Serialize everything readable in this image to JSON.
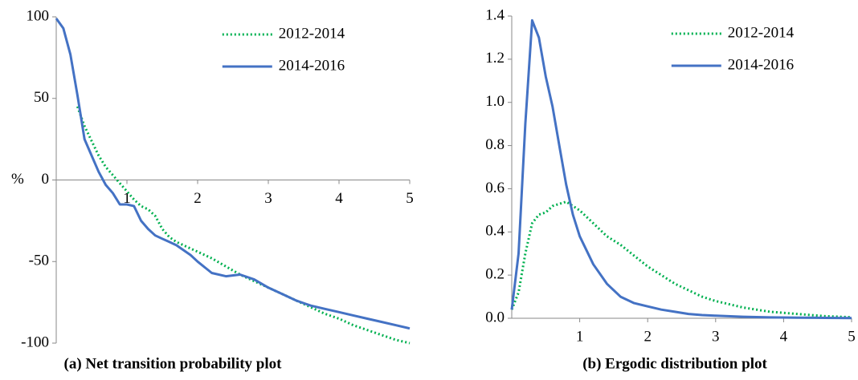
{
  "chart_data": [
    {
      "type": "line",
      "title": "(a) Net transition probability plot",
      "ylabel": "%",
      "x": [
        0,
        0.1,
        0.2,
        0.3,
        0.4,
        0.5,
        0.6,
        0.7,
        0.8,
        0.9,
        1.0,
        1.1,
        1.2,
        1.3,
        1.4,
        1.5,
        1.6,
        1.7,
        1.8,
        1.9,
        2.0,
        2.2,
        2.4,
        2.6,
        2.8,
        3.0,
        3.2,
        3.4,
        3.6,
        3.8,
        4.0,
        4.2,
        4.4,
        4.6,
        4.8,
        5.0
      ],
      "series": [
        {
          "name": "2012-2014",
          "color": "#00b050",
          "style": "dotted",
          "values": [
            null,
            null,
            null,
            45,
            33,
            24,
            15,
            8,
            3,
            -2,
            -7,
            -12,
            -16,
            -18,
            -22,
            -30,
            -35,
            -38,
            -40,
            -42,
            -44,
            -48,
            -53,
            -58,
            -62,
            -66,
            -70,
            -74,
            -78,
            -82,
            -85,
            -89,
            -92,
            -95,
            -98,
            -100
          ]
        },
        {
          "name": "2014-2016",
          "color": "#4472c4",
          "style": "solid",
          "values": [
            99,
            93,
            77,
            52,
            25,
            15,
            5,
            -3,
            -8,
            -15,
            -15,
            -16,
            -25,
            -30,
            -34,
            -36,
            -38,
            -40,
            -43,
            -46,
            -50,
            -57,
            -59,
            -58,
            -61,
            -66,
            -70,
            -74,
            -77,
            -79,
            -81,
            -83,
            -85,
            -87,
            -89,
            -91
          ]
        }
      ],
      "xlim": [
        0,
        5
      ],
      "xticks": [
        1,
        2,
        3,
        4,
        5
      ],
      "ylim": [
        -100,
        100
      ],
      "yticks": [
        -100,
        -50,
        0,
        50,
        100
      ],
      "grid": false,
      "legend": "top-right"
    },
    {
      "type": "line",
      "title": "(b) Ergodic distribution plot",
      "x": [
        0,
        0.1,
        0.2,
        0.3,
        0.4,
        0.5,
        0.6,
        0.7,
        0.8,
        0.9,
        1.0,
        1.2,
        1.4,
        1.6,
        1.8,
        2.0,
        2.2,
        2.4,
        2.6,
        2.8,
        3.0,
        3.4,
        3.8,
        4.2,
        4.6,
        5.0
      ],
      "series": [
        {
          "name": "2012-2014",
          "color": "#00b050",
          "style": "dotted",
          "values": [
            0.04,
            0.12,
            0.3,
            0.44,
            0.48,
            0.49,
            0.52,
            0.53,
            0.54,
            0.52,
            0.5,
            0.44,
            0.38,
            0.34,
            0.29,
            0.24,
            0.2,
            0.16,
            0.13,
            0.1,
            0.08,
            0.05,
            0.03,
            0.02,
            0.01,
            0.005
          ]
        },
        {
          "name": "2014-2016",
          "color": "#4472c4",
          "style": "solid",
          "values": [
            0.04,
            0.3,
            0.9,
            1.38,
            1.3,
            1.12,
            0.98,
            0.8,
            0.62,
            0.48,
            0.38,
            0.25,
            0.16,
            0.1,
            0.07,
            0.055,
            0.04,
            0.03,
            0.02,
            0.015,
            0.012,
            0.007,
            0.004,
            0.003,
            0.002,
            0.001
          ]
        }
      ],
      "xlim": [
        0,
        5
      ],
      "xticks": [
        1,
        2,
        3,
        4,
        5
      ],
      "ylim": [
        0,
        1.4
      ],
      "yticks": [
        {
          "value": 0,
          "label": "0.0"
        },
        0.2,
        0.4,
        0.6,
        0.8,
        {
          "value": 1,
          "label": "1.0"
        },
        1.2,
        1.4
      ],
      "grid": false,
      "legend": "top-right"
    }
  ]
}
